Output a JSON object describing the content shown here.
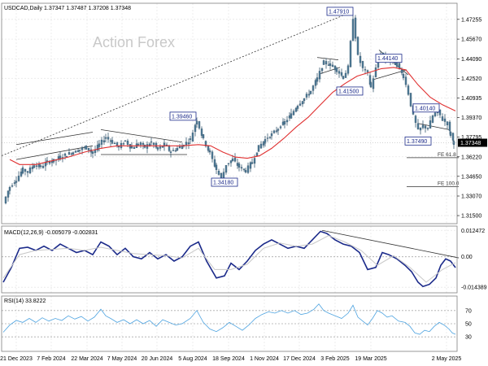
{
  "header": {
    "title": "USDCAD,Daily  1.37347 1.37487 1.37208 1.37348"
  },
  "watermark": "Action Forex",
  "colors": {
    "candle_fill": "#4f7a97",
    "candle_line": "#3b5b72",
    "sma": "#e03030",
    "trend": "#333333",
    "label_box": "#1b2a8a",
    "macd_main": "#1b2a8a",
    "macd_signal": "#c8c8c8",
    "rsi": "#4da3e0",
    "grid": "#e8e8e8",
    "border": "#808080"
  },
  "chart_data": [
    {
      "type": "candlestick",
      "symbol": "USDCAD",
      "timeframe": "Daily",
      "ohlc_last": {
        "open": 1.37347,
        "high": 1.37487,
        "low": 1.37208,
        "close": 1.37348
      },
      "x_ticks": [
        "21 Dec 2023",
        "7 Feb 2024",
        "22 Mar 2024",
        "7 May 2024",
        "20 Jun 2024",
        "5 Aug 2024",
        "18 Sep 2024",
        "1 Nov 2024",
        "17 Dec 2024",
        "3 Feb 2025",
        "19 Mar 2025",
        "2 May 2025"
      ],
      "y_ticks": [
        "1.47255",
        "1.45670",
        "1.44090",
        "1.42520",
        "1.40935",
        "1.39370",
        "1.37795",
        "1.36220",
        "1.34650",
        "1.33070",
        "1.31500"
      ],
      "ylim": [
        1.3085,
        1.4855
      ],
      "price_label": "1.37348",
      "swing_labels": [
        "1.47910",
        "1.39460",
        "1.34180",
        "1.41500",
        "1.44140",
        "1.40140",
        "1.37490"
      ],
      "fib_labels": [
        {
          "text": "FE 61.8",
          "value": 1.3615
        },
        {
          "text": "FE 100.0",
          "value": 1.3383
        }
      ],
      "moving_average": "55-day SMA",
      "close_path": [
        [
          0,
          1.325
        ],
        [
          8,
          1.338
        ],
        [
          16,
          1.344
        ],
        [
          24,
          1.352
        ],
        [
          30,
          1.35
        ],
        [
          38,
          1.356
        ],
        [
          46,
          1.354
        ],
        [
          54,
          1.358
        ],
        [
          62,
          1.359
        ],
        [
          70,
          1.362
        ],
        [
          78,
          1.364
        ],
        [
          86,
          1.366
        ],
        [
          94,
          1.368
        ],
        [
          102,
          1.37
        ],
        [
          110,
          1.365
        ],
        [
          118,
          1.372
        ],
        [
          126,
          1.378
        ],
        [
          134,
          1.374
        ],
        [
          142,
          1.37
        ],
        [
          150,
          1.375
        ],
        [
          158,
          1.369
        ],
        [
          166,
          1.373
        ],
        [
          174,
          1.37
        ],
        [
          182,
          1.374
        ],
        [
          190,
          1.368
        ],
        [
          198,
          1.372
        ],
        [
          206,
          1.366
        ],
        [
          214,
          1.369
        ],
        [
          222,
          1.372
        ],
        [
          230,
          1.376
        ],
        [
          238,
          1.392
        ],
        [
          246,
          1.376
        ],
        [
          254,
          1.365
        ],
        [
          262,
          1.352
        ],
        [
          268,
          1.344
        ],
        [
          274,
          1.356
        ],
        [
          282,
          1.36
        ],
        [
          290,
          1.354
        ],
        [
          298,
          1.351
        ],
        [
          306,
          1.358
        ],
        [
          314,
          1.37
        ],
        [
          322,
          1.376
        ],
        [
          330,
          1.38
        ],
        [
          338,
          1.385
        ],
        [
          346,
          1.39
        ],
        [
          354,
          1.396
        ],
        [
          362,
          1.404
        ],
        [
          370,
          1.409
        ],
        [
          378,
          1.415
        ],
        [
          386,
          1.425
        ],
        [
          394,
          1.438
        ],
        [
          402,
          1.436
        ],
        [
          410,
          1.432
        ],
        [
          418,
          1.426
        ],
        [
          424,
          1.434
        ],
        [
          430,
          1.474
        ],
        [
          436,
          1.443
        ],
        [
          442,
          1.433
        ],
        [
          448,
          1.429
        ],
        [
          452,
          1.418
        ],
        [
          458,
          1.433
        ],
        [
          464,
          1.445
        ],
        [
          470,
          1.439
        ],
        [
          476,
          1.44
        ],
        [
          484,
          1.436
        ],
        [
          492,
          1.427
        ],
        [
          498,
          1.413
        ],
        [
          504,
          1.395
        ],
        [
          510,
          1.383
        ],
        [
          516,
          1.387
        ],
        [
          522,
          1.385
        ],
        [
          528,
          1.395
        ],
        [
          534,
          1.399
        ],
        [
          540,
          1.392
        ],
        [
          546,
          1.389
        ],
        [
          550,
          1.38
        ],
        [
          554,
          1.3735
        ]
      ],
      "sma_path": [
        [
          8,
          1.36
        ],
        [
          20,
          1.356
        ],
        [
          40,
          1.356
        ],
        [
          60,
          1.359
        ],
        [
          80,
          1.362
        ],
        [
          100,
          1.366
        ],
        [
          120,
          1.369
        ],
        [
          140,
          1.371
        ],
        [
          160,
          1.371
        ],
        [
          180,
          1.371
        ],
        [
          200,
          1.371
        ],
        [
          220,
          1.371
        ],
        [
          240,
          1.372
        ],
        [
          255,
          1.371
        ],
        [
          270,
          1.366
        ],
        [
          285,
          1.362
        ],
        [
          300,
          1.361
        ],
        [
          315,
          1.363
        ],
        [
          330,
          1.369
        ],
        [
          345,
          1.377
        ],
        [
          360,
          1.386
        ],
        [
          375,
          1.394
        ],
        [
          390,
          1.404
        ],
        [
          405,
          1.414
        ],
        [
          420,
          1.421
        ],
        [
          435,
          1.427
        ],
        [
          450,
          1.43
        ],
        [
          465,
          1.433
        ],
        [
          480,
          1.434
        ],
        [
          495,
          1.432
        ],
        [
          510,
          1.42
        ],
        [
          525,
          1.41
        ],
        [
          540,
          1.404
        ],
        [
          556,
          1.399
        ]
      ]
    },
    {
      "type": "line",
      "name": "MACD(12,26,9) -0.005079 -0.002831",
      "y_ticks": [
        "0.012472",
        "0.00",
        "-0.014389"
      ],
      "ylim": [
        -0.017,
        0.0145
      ],
      "series": [
        {
          "name": "MACD",
          "points": [
            [
              0,
              -0.012
            ],
            [
              10,
              -0.005
            ],
            [
              20,
              0.004
            ],
            [
              30,
              0.0045
            ],
            [
              40,
              0.003
            ],
            [
              50,
              0.005
            ],
            [
              60,
              0.003
            ],
            [
              70,
              0.006
            ],
            [
              80,
              0.004
            ],
            [
              90,
              0.002
            ],
            [
              100,
              0.003
            ],
            [
              110,
              0.001
            ],
            [
              120,
              0.007
            ],
            [
              130,
              0.005
            ],
            [
              140,
              0.001
            ],
            [
              150,
              0.004
            ],
            [
              160,
              0.0
            ],
            [
              170,
              -0.001
            ],
            [
              180,
              0.002
            ],
            [
              190,
              -0.001
            ],
            [
              200,
              0.001
            ],
            [
              210,
              -0.002
            ],
            [
              220,
              0.0
            ],
            [
              230,
              0.005
            ],
            [
              240,
              0.007
            ],
            [
              250,
              -0.002
            ],
            [
              262,
              -0.01
            ],
            [
              272,
              -0.009
            ],
            [
              280,
              -0.003
            ],
            [
              290,
              -0.006
            ],
            [
              300,
              -0.002
            ],
            [
              310,
              0.003
            ],
            [
              320,
              0.006
            ],
            [
              330,
              0.008
            ],
            [
              340,
              0.006
            ],
            [
              350,
              0.004
            ],
            [
              360,
              0.005
            ],
            [
              370,
              0.004
            ],
            [
              380,
              0.008
            ],
            [
              390,
              0.012
            ],
            [
              398,
              0.011
            ],
            [
              408,
              0.008
            ],
            [
              418,
              0.006
            ],
            [
              428,
              0.005
            ],
            [
              438,
              0.002
            ],
            [
              448,
              -0.006
            ],
            [
              458,
              -0.005
            ],
            [
              466,
              0.002
            ],
            [
              474,
              0.001
            ],
            [
              484,
              -0.001
            ],
            [
              494,
              -0.004
            ],
            [
              502,
              -0.007
            ],
            [
              510,
              -0.012
            ],
            [
              516,
              -0.014
            ],
            [
              524,
              -0.013
            ],
            [
              532,
              -0.01
            ],
            [
              538,
              -0.004
            ],
            [
              544,
              -0.001
            ],
            [
              550,
              -0.002
            ],
            [
              556,
              -0.0051
            ]
          ]
        },
        {
          "name": "Signal",
          "points": [
            [
              0,
              -0.01
            ],
            [
              20,
              0.001
            ],
            [
              40,
              0.003
            ],
            [
              60,
              0.0035
            ],
            [
              80,
              0.004
            ],
            [
              100,
              0.003
            ],
            [
              120,
              0.0045
            ],
            [
              140,
              0.003
            ],
            [
              160,
              0.0015
            ],
            [
              180,
              0.001
            ],
            [
              200,
              0.0005
            ],
            [
              220,
              -0.0005
            ],
            [
              240,
              0.004
            ],
            [
              260,
              -0.006
            ],
            [
              280,
              -0.006
            ],
            [
              300,
              -0.0035
            ],
            [
              320,
              0.004
            ],
            [
              340,
              0.0065
            ],
            [
              360,
              0.005
            ],
            [
              380,
              0.006
            ],
            [
              400,
              0.01
            ],
            [
              420,
              0.007
            ],
            [
              440,
              0.003
            ],
            [
              460,
              -0.004
            ],
            [
              480,
              0.0005
            ],
            [
              500,
              -0.005
            ],
            [
              520,
              -0.012
            ],
            [
              540,
              -0.006
            ],
            [
              556,
              -0.0028
            ]
          ]
        }
      ]
    },
    {
      "type": "line",
      "name": "RSI(14) 33.8222",
      "y_ticks": [
        "70",
        "50",
        "30"
      ],
      "ylim": [
        8,
        92
      ],
      "series": [
        {
          "name": "RSI",
          "points": [
            [
              0,
              37
            ],
            [
              8,
              48
            ],
            [
              16,
              55
            ],
            [
              24,
              52
            ],
            [
              32,
              58
            ],
            [
              40,
              52
            ],
            [
              48,
              59
            ],
            [
              56,
              54
            ],
            [
              64,
              58
            ],
            [
              72,
              55
            ],
            [
              80,
              62
            ],
            [
              88,
              57
            ],
            [
              96,
              61
            ],
            [
              104,
              54
            ],
            [
              112,
              60
            ],
            [
              120,
              72
            ],
            [
              126,
              62
            ],
            [
              132,
              58
            ],
            [
              140,
              52
            ],
            [
              148,
              56
            ],
            [
              156,
              50
            ],
            [
              164,
              56
            ],
            [
              172,
              50
            ],
            [
              180,
              55
            ],
            [
              188,
              46
            ],
            [
              196,
              56
            ],
            [
              204,
              52
            ],
            [
              212,
              48
            ],
            [
              220,
              50
            ],
            [
              230,
              58
            ],
            [
              238,
              70
            ],
            [
              246,
              52
            ],
            [
              254,
              42
            ],
            [
              262,
              38
            ],
            [
              270,
              44
            ],
            [
              278,
              52
            ],
            [
              286,
              46
            ],
            [
              294,
              40
            ],
            [
              302,
              48
            ],
            [
              310,
              58
            ],
            [
              318,
              64
            ],
            [
              326,
              68
            ],
            [
              334,
              66
            ],
            [
              342,
              70
            ],
            [
              350,
              66
            ],
            [
              358,
              70
            ],
            [
              366,
              64
            ],
            [
              374,
              66
            ],
            [
              382,
              72
            ],
            [
              388,
              80
            ],
            [
              394,
              70
            ],
            [
              400,
              66
            ],
            [
              408,
              62
            ],
            [
              416,
              58
            ],
            [
              424,
              66
            ],
            [
              430,
              78
            ],
            [
              436,
              60
            ],
            [
              442,
              54
            ],
            [
              448,
              48
            ],
            [
              454,
              58
            ],
            [
              460,
              70
            ],
            [
              466,
              66
            ],
            [
              472,
              60
            ],
            [
              478,
              62
            ],
            [
              486,
              54
            ],
            [
              494,
              52
            ],
            [
              500,
              46
            ],
            [
              506,
              36
            ],
            [
              512,
              34
            ],
            [
              518,
              40
            ],
            [
              524,
              38
            ],
            [
              530,
              46
            ],
            [
              536,
              52
            ],
            [
              542,
              48
            ],
            [
              548,
              42
            ],
            [
              552,
              36
            ],
            [
              556,
              34
            ]
          ]
        }
      ]
    }
  ]
}
